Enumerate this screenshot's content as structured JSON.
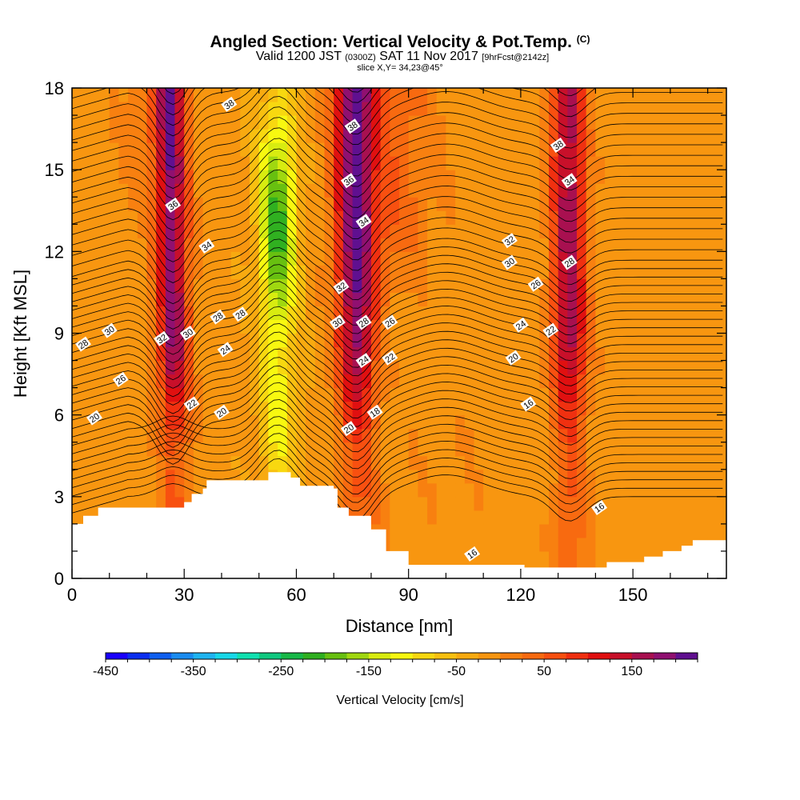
{
  "title": {
    "main": "Angled Section: Vertical Velocity & Pot.Temp.",
    "main_suffix": "(C)",
    "valid_prefix": "Valid 1200 JST",
    "valid_utc": "(0300Z)",
    "valid_date": "SAT 11 Nov 2017",
    "forecast": "[9hrFcst@2142z]",
    "slice": "slice X,Y= 34,23@45°"
  },
  "chart_data": {
    "type": "heatmap",
    "xlabel": "Distance [nm]",
    "ylabel": "Height [Kft MSL]",
    "xlim": [
      0,
      175
    ],
    "ylim": [
      0,
      18
    ],
    "x_ticks": [
      "0",
      "30",
      "60",
      "90",
      "120",
      "150"
    ],
    "x_tick_values": [
      0,
      30,
      60,
      90,
      120,
      150
    ],
    "y_ticks": [
      "0",
      "3",
      "6",
      "9",
      "12",
      "15",
      "18"
    ],
    "y_tick_values": [
      0,
      3,
      6,
      9,
      12,
      15,
      18
    ],
    "colorbar": {
      "title": "Vertical Velocity [cm/s]",
      "labels": [
        "-450",
        "-350",
        "-250",
        "-150",
        "-50",
        "50",
        "150"
      ],
      "label_values": [
        -450,
        -350,
        -250,
        -150,
        -50,
        50,
        150
      ],
      "min": -450,
      "max": 225,
      "colors": [
        "#1a00ff",
        "#0b2ff0",
        "#1060f0",
        "#1a8cf0",
        "#1fb4f0",
        "#18d8e8",
        "#10e0b0",
        "#10c880",
        "#18b848",
        "#30b020",
        "#68c010",
        "#a0d810",
        "#d8ec10",
        "#f8f810",
        "#f8d810",
        "#f8c010",
        "#f8aa10",
        "#f89610",
        "#f88010",
        "#f86a10",
        "#f85010",
        "#f03010",
        "#e01010",
        "#c8102a",
        "#a81050",
        "#901070",
        "#601090"
      ]
    },
    "vertical_velocity_bands": [
      {
        "x": 27,
        "value": 200,
        "label": "updraft"
      },
      {
        "x": 55,
        "value": -200,
        "label": "downdraft"
      },
      {
        "x": 76,
        "value": 200,
        "label": "updraft"
      },
      {
        "x": 133,
        "value": 180,
        "label": "updraft"
      }
    ],
    "terrain_kft": [
      [
        0,
        2.0
      ],
      [
        3,
        2.3
      ],
      [
        7,
        2.6
      ],
      [
        30,
        2.8
      ],
      [
        32,
        3.1
      ],
      [
        35,
        3.3
      ],
      [
        36,
        3.6
      ],
      [
        52,
        3.6
      ],
      [
        52.5,
        3.9
      ],
      [
        58,
        3.9
      ],
      [
        58.5,
        3.7
      ],
      [
        61,
        3.4
      ],
      [
        70,
        3.3
      ],
      [
        71,
        2.6
      ],
      [
        74,
        2.3
      ],
      [
        80,
        1.8
      ],
      [
        84,
        1.0
      ],
      [
        90,
        0.5
      ],
      [
        118,
        0.5
      ],
      [
        121,
        0.4
      ],
      [
        142,
        0.4
      ],
      [
        143,
        0.6
      ],
      [
        153,
        0.8
      ],
      [
        158,
        1.0
      ],
      [
        163,
        1.2
      ],
      [
        166,
        1.4
      ],
      [
        175,
        1.6
      ]
    ],
    "theta_contour_labels": [
      {
        "text": "38",
        "x": 42,
        "y": 17.4
      },
      {
        "text": "38",
        "x": 75,
        "y": 16.6
      },
      {
        "text": "38",
        "x": 130,
        "y": 15.9
      },
      {
        "text": "36",
        "x": 74,
        "y": 14.6
      },
      {
        "text": "34",
        "x": 133,
        "y": 14.6
      },
      {
        "text": "36",
        "x": 27,
        "y": 13.7
      },
      {
        "text": "34",
        "x": 78,
        "y": 13.1
      },
      {
        "text": "32",
        "x": 117,
        "y": 12.4
      },
      {
        "text": "34",
        "x": 36,
        "y": 12.2
      },
      {
        "text": "30",
        "x": 117,
        "y": 11.6
      },
      {
        "text": "28",
        "x": 133,
        "y": 11.6
      },
      {
        "text": "32",
        "x": 72,
        "y": 10.7
      },
      {
        "text": "26",
        "x": 124,
        "y": 10.8
      },
      {
        "text": "30",
        "x": 10,
        "y": 9.1
      },
      {
        "text": "28",
        "x": 39,
        "y": 9.6
      },
      {
        "text": "28",
        "x": 45,
        "y": 9.7
      },
      {
        "text": "30",
        "x": 71,
        "y": 9.4
      },
      {
        "text": "28",
        "x": 78,
        "y": 9.4
      },
      {
        "text": "26",
        "x": 85,
        "y": 9.4
      },
      {
        "text": "24",
        "x": 120,
        "y": 9.3
      },
      {
        "text": "22",
        "x": 128,
        "y": 9.1
      },
      {
        "text": "32",
        "x": 24,
        "y": 8.8
      },
      {
        "text": "30",
        "x": 31,
        "y": 9.0
      },
      {
        "text": "28",
        "x": 3,
        "y": 8.6
      },
      {
        "text": "24",
        "x": 41,
        "y": 8.4
      },
      {
        "text": "24",
        "x": 78,
        "y": 8.0
      },
      {
        "text": "22",
        "x": 85,
        "y": 8.1
      },
      {
        "text": "20",
        "x": 118,
        "y": 8.1
      },
      {
        "text": "26",
        "x": 13,
        "y": 7.3
      },
      {
        "text": "22",
        "x": 32,
        "y": 6.4
      },
      {
        "text": "16",
        "x": 122,
        "y": 6.4
      },
      {
        "text": "20",
        "x": 40,
        "y": 6.1
      },
      {
        "text": "18",
        "x": 81,
        "y": 6.1
      },
      {
        "text": "20",
        "x": 6,
        "y": 5.9
      },
      {
        "text": "20",
        "x": 74,
        "y": 5.5
      },
      {
        "text": "16",
        "x": 141,
        "y": 2.6
      },
      {
        "text": "16",
        "x": 107,
        "y": 0.9
      }
    ]
  }
}
